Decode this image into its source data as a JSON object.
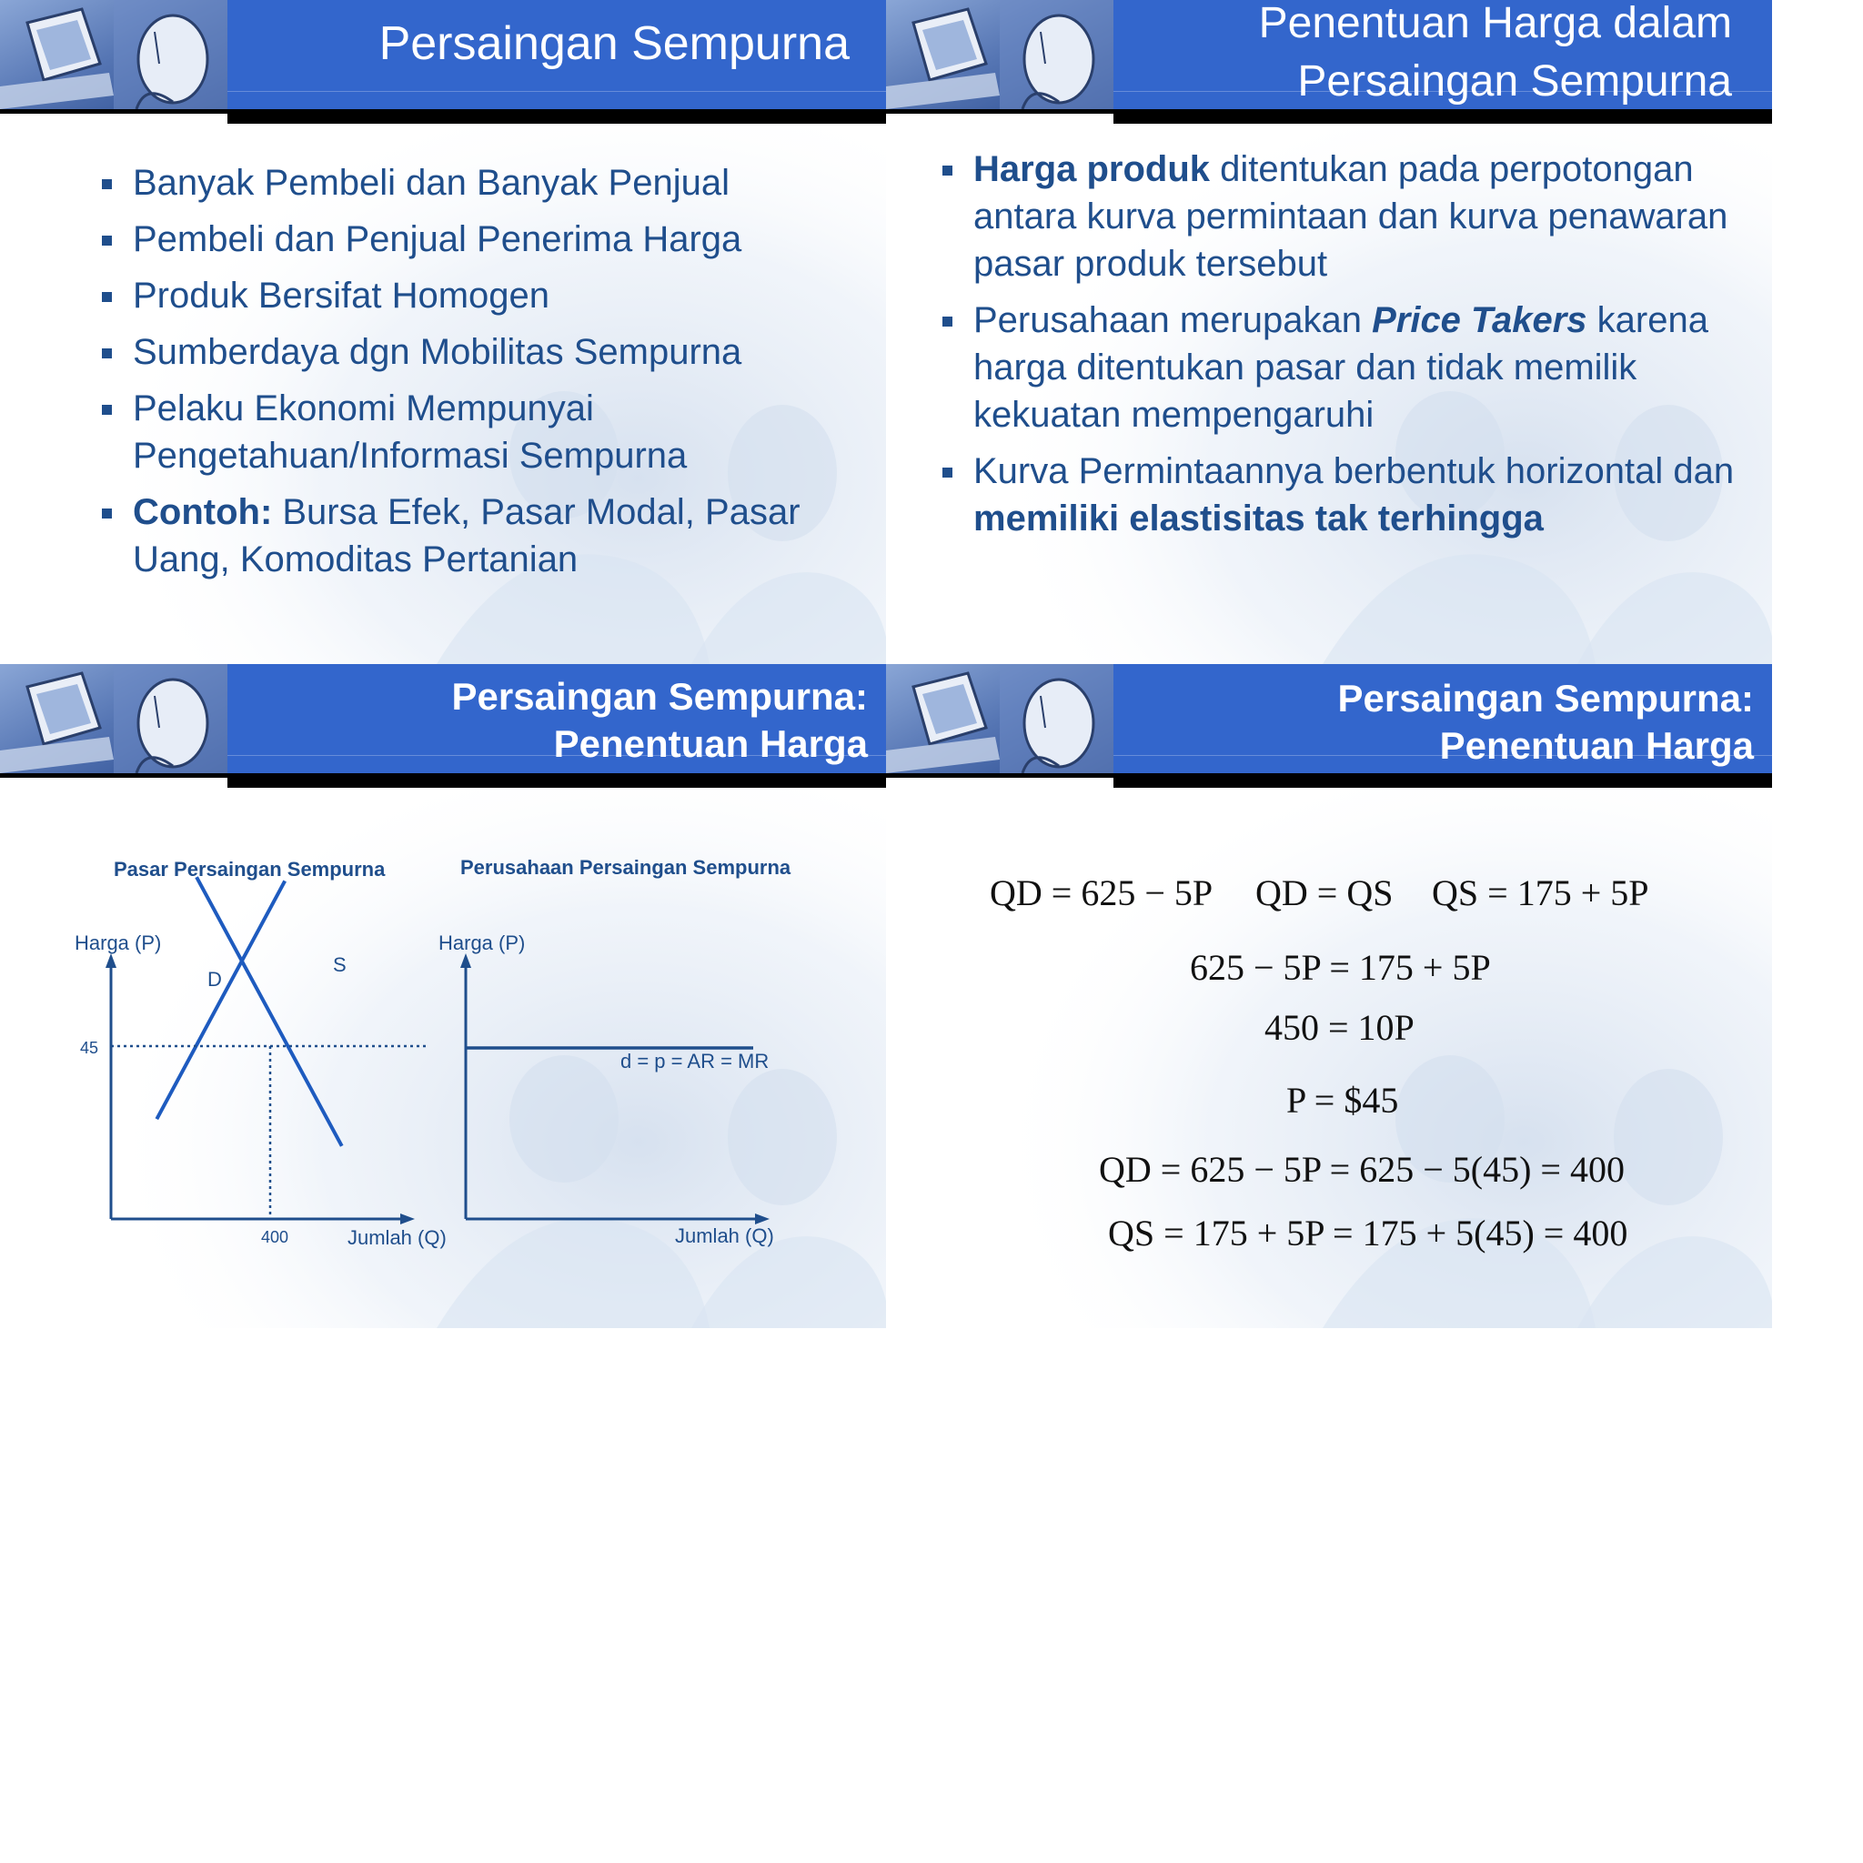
{
  "slides": [
    {
      "title": "Persaingan Sempurna",
      "bullets": [
        "Banyak Pembeli dan Banyak Penjual",
        "Pembeli dan Penjual Penerima Harga",
        "Produk Bersifat Homogen",
        "Sumberdaya dgn Mobilitas Sempurna",
        "Pelaku Ekonomi Mempunyai Pengetahuan/Informasi Sempurna"
      ],
      "last_bullet": {
        "bold": "Contoh:",
        "rest": " Bursa Efek, Pasar Modal, Pasar Uang, Komoditas Pertanian"
      }
    },
    {
      "title_line1": "Penentuan Harga dalam",
      "title_line2": "Persaingan Sempurna",
      "b1_bold": "Harga produk",
      "b1_rest": " ditentukan pada perpotongan antara kurva permintaan dan kurva penawaran pasar produk tersebut",
      "b2_pre": "Perusahaan merupakan ",
      "b2_bolditalic": "Price Takers",
      "b2_rest": " karena harga ditentukan pasar dan tidak memilik kekuatan mempengaruhi",
      "b3_pre": "Kurva Permintaannya berbentuk horizontal dan ",
      "b3_bold": "memiliki elastisitas tak terhingga"
    },
    {
      "title_line1": "Persaingan Sempurna:",
      "title_line2": "Penentuan Harga"
    },
    {
      "title_line1": "Persaingan Sempurna:",
      "title_line2": "Penentuan Harga"
    }
  ],
  "chart_data": [
    {
      "type": "line",
      "title": "Pasar Persaingan Sempurna",
      "ylabel": "Harga (P)",
      "xlabel": "Jumlah (Q)",
      "equilibrium": {
        "x": 400,
        "y": 45
      },
      "x_ticks": [
        "400"
      ],
      "y_ticks": [
        "45"
      ],
      "series": [
        {
          "name": "D",
          "points": [
            [
              120,
              75
            ],
            [
              680,
              17
            ]
          ]
        },
        {
          "name": "S",
          "points": [
            [
              120,
              17
            ],
            [
              680,
              75
            ]
          ]
        }
      ],
      "guides": "dotted"
    },
    {
      "type": "line",
      "title": "Perusahaan Persaingan Sempurna",
      "ylabel": "Harga (P)",
      "xlabel": "Jumlah (Q)",
      "series": [
        {
          "name": "d = p = AR = MR",
          "points": [
            [
              0,
              45
            ],
            [
              100,
              45
            ]
          ]
        }
      ]
    }
  ],
  "equations": {
    "l1a": "QD = 625 − 5P",
    "l1b": "QD = QS",
    "l1c": "QS = 175 + 5P",
    "l2": "625 − 5P = 175 + 5P",
    "l3": "450 = 10P",
    "l4": "P = $45",
    "l5": "QD = 625 − 5P = 625 − 5(45) = 400",
    "l6": "QS = 175 + 5P = 175 + 5(45) = 400"
  },
  "colors": {
    "title_bar": "#3366cc",
    "text_blue": "#1f4e8c",
    "line_blue": "#1e5bbf"
  }
}
